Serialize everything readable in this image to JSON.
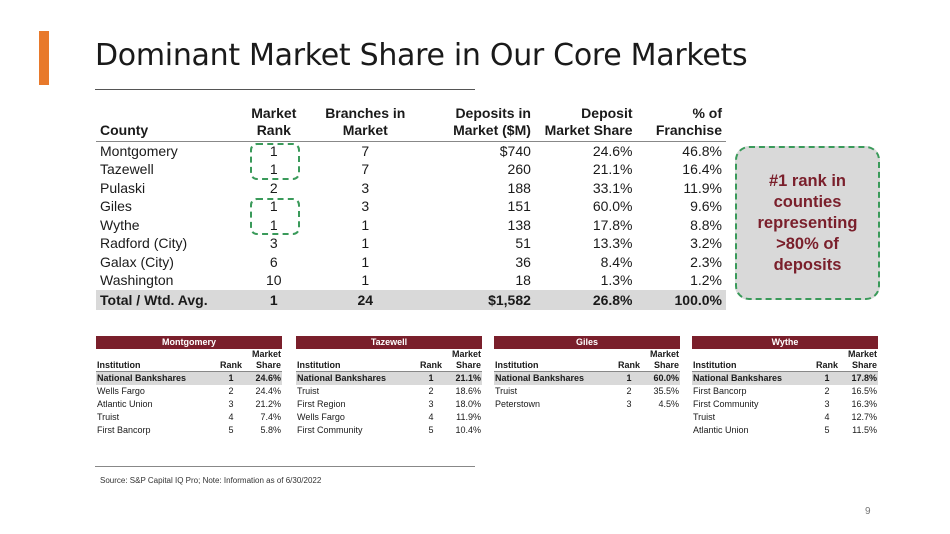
{
  "title": "Dominant Market Share in Our Core Markets",
  "main_table": {
    "headers": {
      "county": "County",
      "rank_1": "Market",
      "rank_2": "Rank",
      "branches_1": "Branches in",
      "branches_2": "Market",
      "deposits_1": "Deposits in",
      "deposits_2": "Market ($M)",
      "share_1": "Deposit",
      "share_2": "Market Share",
      "franchise_1": "% of",
      "franchise_2": "Franchise"
    },
    "rows": [
      {
        "county": "Montgomery",
        "rank": "1",
        "branches": "7",
        "deposits": "$740",
        "share": "24.6%",
        "franchise": "46.8%"
      },
      {
        "county": "Tazewell",
        "rank": "1",
        "branches": "7",
        "deposits": "260",
        "share": "21.1%",
        "franchise": "16.4%"
      },
      {
        "county": "Pulaski",
        "rank": "2",
        "branches": "3",
        "deposits": "188",
        "share": "33.1%",
        "franchise": "11.9%"
      },
      {
        "county": "Giles",
        "rank": "1",
        "branches": "3",
        "deposits": "151",
        "share": "60.0%",
        "franchise": "9.6%"
      },
      {
        "county": "Wythe",
        "rank": "1",
        "branches": "1",
        "deposits": "138",
        "share": "17.8%",
        "franchise": "8.8%"
      },
      {
        "county": "Radford (City)",
        "rank": "3",
        "branches": "1",
        "deposits": "51",
        "share": "13.3%",
        "franchise": "3.2%"
      },
      {
        "county": "Galax (City)",
        "rank": "6",
        "branches": "1",
        "deposits": "36",
        "share": "8.4%",
        "franchise": "2.3%"
      },
      {
        "county": "Washington",
        "rank": "10",
        "branches": "1",
        "deposits": "18",
        "share": "1.3%",
        "franchise": "1.2%"
      }
    ],
    "total": {
      "county": "Total / Wtd. Avg.",
      "rank": "1",
      "branches": "24",
      "deposits": "$1,582",
      "share": "26.8%",
      "franchise": "100.0%"
    }
  },
  "callout": "#1 rank in counties representing >80% of deposits",
  "mini_headers": {
    "institution": "Institution",
    "rank": "Rank",
    "share_1": "Market",
    "share_2": "Share"
  },
  "mini_tables": [
    {
      "title": "Montgomery",
      "rows": [
        {
          "inst": "National Bankshares",
          "rank": "1",
          "share": "24.6%"
        },
        {
          "inst": "Wells Fargo",
          "rank": "2",
          "share": "24.4%"
        },
        {
          "inst": "Atlantic Union",
          "rank": "3",
          "share": "21.2%"
        },
        {
          "inst": "Truist",
          "rank": "4",
          "share": "7.4%"
        },
        {
          "inst": "First Bancorp",
          "rank": "5",
          "share": "5.8%"
        }
      ]
    },
    {
      "title": "Tazewell",
      "rows": [
        {
          "inst": "National Bankshares",
          "rank": "1",
          "share": "21.1%"
        },
        {
          "inst": "Truist",
          "rank": "2",
          "share": "18.6%"
        },
        {
          "inst": "First Region",
          "rank": "3",
          "share": "18.0%"
        },
        {
          "inst": "Wells Fargo",
          "rank": "4",
          "share": "11.9%"
        },
        {
          "inst": "First Community",
          "rank": "5",
          "share": "10.4%"
        }
      ]
    },
    {
      "title": "Giles",
      "rows": [
        {
          "inst": "National Bankshares",
          "rank": "1",
          "share": "60.0%"
        },
        {
          "inst": "Truist",
          "rank": "2",
          "share": "35.5%"
        },
        {
          "inst": "Peterstown",
          "rank": "3",
          "share": "4.5%"
        }
      ]
    },
    {
      "title": "Wythe",
      "rows": [
        {
          "inst": "National Bankshares",
          "rank": "1",
          "share": "17.8%"
        },
        {
          "inst": "First Bancorp",
          "rank": "2",
          "share": "16.5%"
        },
        {
          "inst": "First Community",
          "rank": "3",
          "share": "16.3%"
        },
        {
          "inst": "Truist",
          "rank": "4",
          "share": "12.7%"
        },
        {
          "inst": "Atlantic Union",
          "rank": "5",
          "share": "11.5%"
        }
      ]
    }
  ],
  "source": "Source: S&P Capital IQ Pro; Note: Information as of 6/30/2022",
  "page_number": "9",
  "colors": {
    "accent": "#e8792b",
    "header": "#7a1f2b",
    "highlight": "#d9d9d9",
    "dash": "#3a9a5a"
  }
}
